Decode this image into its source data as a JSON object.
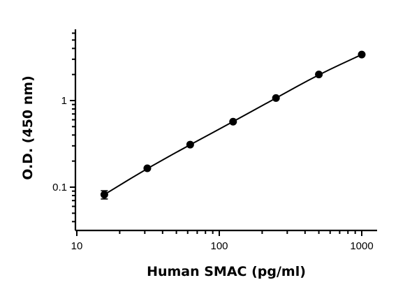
{
  "chart_data": {
    "type": "scatter",
    "xlabel": "Human SMAC (pg/ml)",
    "ylabel": "O.D. (450 nm)",
    "x_scale": "log",
    "y_scale": "log",
    "xlim": [
      10,
      1200
    ],
    "ylim": [
      0.03,
      6
    ],
    "x_ticks": [
      {
        "value": 10,
        "label": "10"
      },
      {
        "value": 100,
        "label": "100"
      },
      {
        "value": 1000,
        "label": "1000"
      }
    ],
    "y_ticks": [
      {
        "value": 0.1,
        "label": "0.1"
      },
      {
        "value": 1,
        "label": "1"
      }
    ],
    "grid": false,
    "legend": "none",
    "fit_line": true,
    "series": [
      {
        "x": [
          15.6,
          31.25,
          62.5,
          125,
          250,
          500,
          1000
        ],
        "y": [
          0.082,
          0.165,
          0.31,
          0.57,
          1.07,
          2.0,
          3.4
        ],
        "y_err": [
          0.009,
          0.005,
          0.008,
          0.01,
          0.02,
          0.03,
          0.04
        ]
      }
    ],
    "colors": {
      "marks": "#000000"
    }
  }
}
